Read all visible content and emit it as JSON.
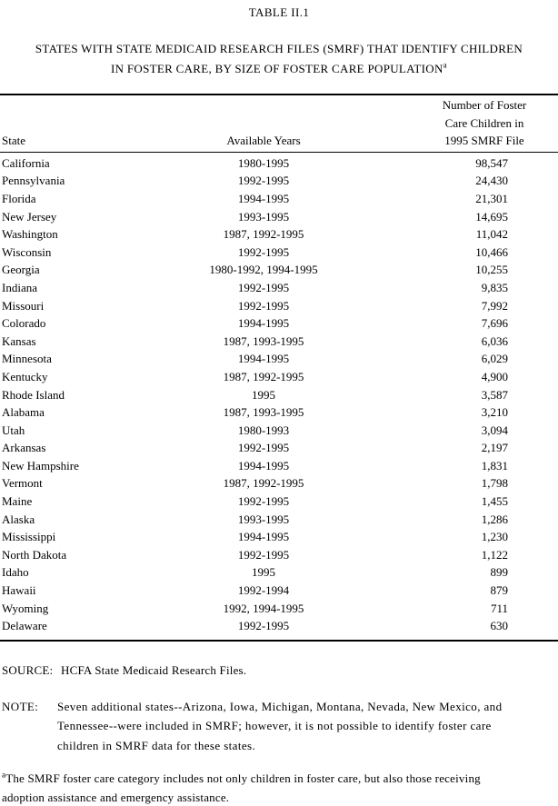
{
  "title": "TABLE II.1",
  "subtitle": {
    "line1": "STATES WITH STATE MEDICAID RESEARCH FILES (SMRF) THAT IDENTIFY CHILDREN",
    "line2": "IN FOSTER CARE, BY SIZE OF FOSTER CARE POPULATION",
    "superscript": "a"
  },
  "table": {
    "columns": {
      "state": "State",
      "years": "Available Years",
      "number_line1": "Number of Foster",
      "number_line2": "Care Children in",
      "number_line3": "1995 SMRF File"
    },
    "rows": [
      {
        "state": "California",
        "years": "1980-1995",
        "count": "98,547"
      },
      {
        "state": "Pennsylvania",
        "years": "1992-1995",
        "count": "24,430"
      },
      {
        "state": "Florida",
        "years": "1994-1995",
        "count": "21,301"
      },
      {
        "state": "New Jersey",
        "years": "1993-1995",
        "count": "14,695"
      },
      {
        "state": "Washington",
        "years": "1987, 1992-1995",
        "count": "11,042"
      },
      {
        "state": "Wisconsin",
        "years": "1992-1995",
        "count": "10,466"
      },
      {
        "state": "Georgia",
        "years": "1980-1992, 1994-1995",
        "count": "10,255"
      },
      {
        "state": "Indiana",
        "years": "1992-1995",
        "count": "9,835"
      },
      {
        "state": "Missouri",
        "years": "1992-1995",
        "count": "7,992"
      },
      {
        "state": "Colorado",
        "years": "1994-1995",
        "count": "7,696"
      },
      {
        "state": "Kansas",
        "years": "1987, 1993-1995",
        "count": "6,036"
      },
      {
        "state": "Minnesota",
        "years": "1994-1995",
        "count": "6,029"
      },
      {
        "state": "Kentucky",
        "years": "1987, 1992-1995",
        "count": "4,900"
      },
      {
        "state": "Rhode Island",
        "years": "1995",
        "count": "3,587"
      },
      {
        "state": "Alabama",
        "years": "1987, 1993-1995",
        "count": "3,210"
      },
      {
        "state": "Utah",
        "years": "1980-1993",
        "count": "3,094"
      },
      {
        "state": "Arkansas",
        "years": "1992-1995",
        "count": "2,197"
      },
      {
        "state": "New Hampshire",
        "years": "1994-1995",
        "count": "1,831"
      },
      {
        "state": "Vermont",
        "years": "1987, 1992-1995",
        "count": "1,798"
      },
      {
        "state": "Maine",
        "years": "1992-1995",
        "count": "1,455"
      },
      {
        "state": "Alaska",
        "years": "1993-1995",
        "count": "1,286"
      },
      {
        "state": "Mississippi",
        "years": "1994-1995",
        "count": "1,230"
      },
      {
        "state": "North Dakota",
        "years": "1992-1995",
        "count": "1,122"
      },
      {
        "state": "Idaho",
        "years": "1995",
        "count": "899"
      },
      {
        "state": "Hawaii",
        "years": "1992-1994",
        "count": "879"
      },
      {
        "state": "Wyoming",
        "years": "1992, 1994-1995",
        "count": "711"
      },
      {
        "state": "Delaware",
        "years": "1992-1995",
        "count": "630"
      }
    ]
  },
  "source": {
    "label": "SOURCE:",
    "text": "HCFA State Medicaid Research Files."
  },
  "note": {
    "label": "NOTE:",
    "line1": "Seven additional states--Arizona, Iowa, Michigan, Montana, Nevada, New Mexico, and",
    "line2": "Tennessee--were included in SMRF; however, it is not possible to identify foster care",
    "line3": "children in SMRF data for these states."
  },
  "footnote": {
    "superscript": "a",
    "line1": "The SMRF foster care category includes not only children in foster care, but also those receiving",
    "line2": "adoption assistance and emergency assistance."
  },
  "colors": {
    "text": "#000000",
    "background": "#ffffff",
    "rule": "#000000"
  }
}
